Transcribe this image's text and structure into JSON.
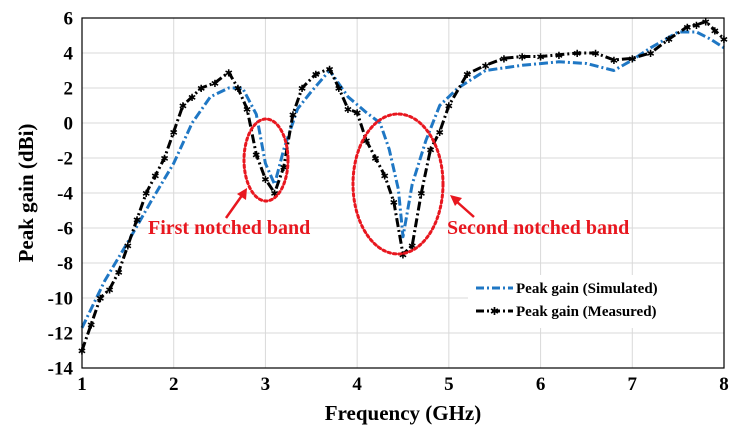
{
  "chart_data": {
    "type": "line",
    "title": "",
    "xlabel": "Frequency (GHz)",
    "ylabel": "Peak gain (dBi)",
    "xlim": [
      1,
      8
    ],
    "ylim": [
      -14,
      6
    ],
    "xticks": [
      "1",
      "2",
      "3",
      "4",
      "5",
      "6",
      "7",
      "8"
    ],
    "yticks": [
      "6",
      "4",
      "2",
      "0",
      "-2",
      "-4",
      "-6",
      "-8",
      "-10",
      "-12",
      "-14"
    ],
    "grid": true,
    "legend_position": "bottom-right",
    "series": [
      {
        "name": "Peak gain (Simulated)",
        "color": "#1f77c4",
        "style": "dashdot",
        "x": [
          1.0,
          1.25,
          1.5,
          1.75,
          2.0,
          2.2,
          2.4,
          2.6,
          2.75,
          2.9,
          3.0,
          3.1,
          3.2,
          3.35,
          3.5,
          3.7,
          3.9,
          4.1,
          4.25,
          4.35,
          4.45,
          4.5,
          4.6,
          4.75,
          4.9,
          5.1,
          5.4,
          5.8,
          6.2,
          6.5,
          6.8,
          7.0,
          7.2,
          7.5,
          7.7,
          7.85,
          8.0
        ],
        "y": [
          -11.7,
          -9.0,
          -6.8,
          -4.5,
          -2.3,
          0.0,
          1.5,
          2.0,
          2.0,
          0.5,
          -2.3,
          -3.5,
          -1.5,
          0.8,
          1.8,
          3.0,
          1.5,
          0.6,
          0.0,
          -1.5,
          -3.8,
          -6.5,
          -3.5,
          -1.0,
          1.0,
          2.0,
          3.0,
          3.3,
          3.5,
          3.4,
          3.0,
          3.6,
          4.3,
          5.2,
          5.2,
          4.8,
          4.3
        ]
      },
      {
        "name": "Peak gain (Measured)",
        "color": "#000000",
        "style": "dashdot-marker",
        "x": [
          1.0,
          1.1,
          1.2,
          1.3,
          1.4,
          1.5,
          1.6,
          1.7,
          1.8,
          1.9,
          2.0,
          2.1,
          2.2,
          2.3,
          2.45,
          2.6,
          2.7,
          2.8,
          2.9,
          3.0,
          3.1,
          3.2,
          3.3,
          3.4,
          3.55,
          3.7,
          3.8,
          3.9,
          4.0,
          4.1,
          4.2,
          4.3,
          4.4,
          4.5,
          4.6,
          4.7,
          4.8,
          4.9,
          5.0,
          5.2,
          5.4,
          5.6,
          5.8,
          6.0,
          6.2,
          6.4,
          6.6,
          6.8,
          7.0,
          7.2,
          7.4,
          7.6,
          7.7,
          7.8,
          7.9,
          8.0
        ],
        "y": [
          -13.0,
          -11.5,
          -10.0,
          -9.5,
          -8.5,
          -7.0,
          -5.5,
          -4.0,
          -3.0,
          -2.0,
          -0.5,
          1.0,
          1.5,
          2.0,
          2.3,
          2.9,
          2.0,
          0.8,
          -1.8,
          -3.2,
          -4.0,
          -2.5,
          0.5,
          2.0,
          2.8,
          3.1,
          2.0,
          0.8,
          0.6,
          -1.0,
          -2.0,
          -3.0,
          -4.5,
          -7.5,
          -7.0,
          -4.0,
          -1.5,
          -0.5,
          1.0,
          2.8,
          3.3,
          3.7,
          3.8,
          3.8,
          3.9,
          4.0,
          4.0,
          3.6,
          3.7,
          4.0,
          4.8,
          5.5,
          5.6,
          5.8,
          5.3,
          4.8
        ]
      }
    ],
    "annotations": [
      {
        "text": "First notched band",
        "color": "#e8171f"
      },
      {
        "text": "Second notched band",
        "color": "#e8171f"
      }
    ]
  }
}
